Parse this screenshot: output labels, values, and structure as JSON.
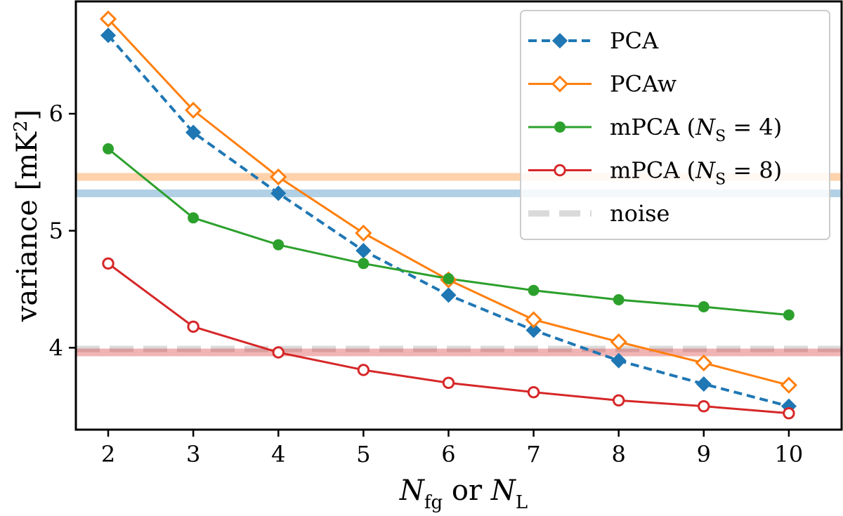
{
  "chart_data": {
    "type": "line",
    "xlabel": "N_fg or N_L",
    "ylabel": "variance [mK²]",
    "xlim": [
      1.62,
      10.62
    ],
    "ylim": [
      3.3,
      6.96
    ],
    "x": [
      2,
      3,
      4,
      5,
      6,
      7,
      8,
      9,
      10
    ],
    "x_ticks": [
      2,
      3,
      4,
      5,
      6,
      7,
      8,
      9,
      10
    ],
    "y_ticks": [
      4,
      5,
      6
    ],
    "grid": false,
    "legend_position": "top-right",
    "series": [
      {
        "name": "PCA",
        "color": "#1f77b4",
        "line_style": "dashed",
        "marker": "filled-diamond",
        "values": [
          6.67,
          5.84,
          5.32,
          4.83,
          4.45,
          4.15,
          3.89,
          3.69,
          3.5
        ]
      },
      {
        "name": "PCAw",
        "color": "#ff7f0e",
        "line_style": "solid",
        "marker": "open-diamond",
        "values": [
          6.81,
          6.03,
          5.46,
          4.98,
          4.58,
          4.24,
          4.05,
          3.87,
          3.68
        ]
      },
      {
        "name": "mPCA (N_S = 4)",
        "color": "#2ca02c",
        "line_style": "solid",
        "marker": "filled-circle",
        "values": [
          5.7,
          5.11,
          4.88,
          4.72,
          4.59,
          4.49,
          4.41,
          4.35,
          4.28
        ]
      },
      {
        "name": "mPCA (N_S = 8)",
        "color": "#d62728",
        "line_style": "solid",
        "marker": "open-circle",
        "values": [
          4.72,
          4.18,
          3.96,
          3.81,
          3.7,
          3.62,
          3.55,
          3.5,
          3.44
        ]
      }
    ],
    "reference_lines": [
      {
        "label": "",
        "value": 5.46,
        "color": "#ff7f0e"
      },
      {
        "label": "",
        "value": 5.32,
        "color": "#1f77b4"
      },
      {
        "label": "noise",
        "value": 3.99,
        "color": "#bbbbbb",
        "style": "dashed"
      },
      {
        "label": "",
        "value": 3.96,
        "color": "#d62728"
      }
    ]
  }
}
